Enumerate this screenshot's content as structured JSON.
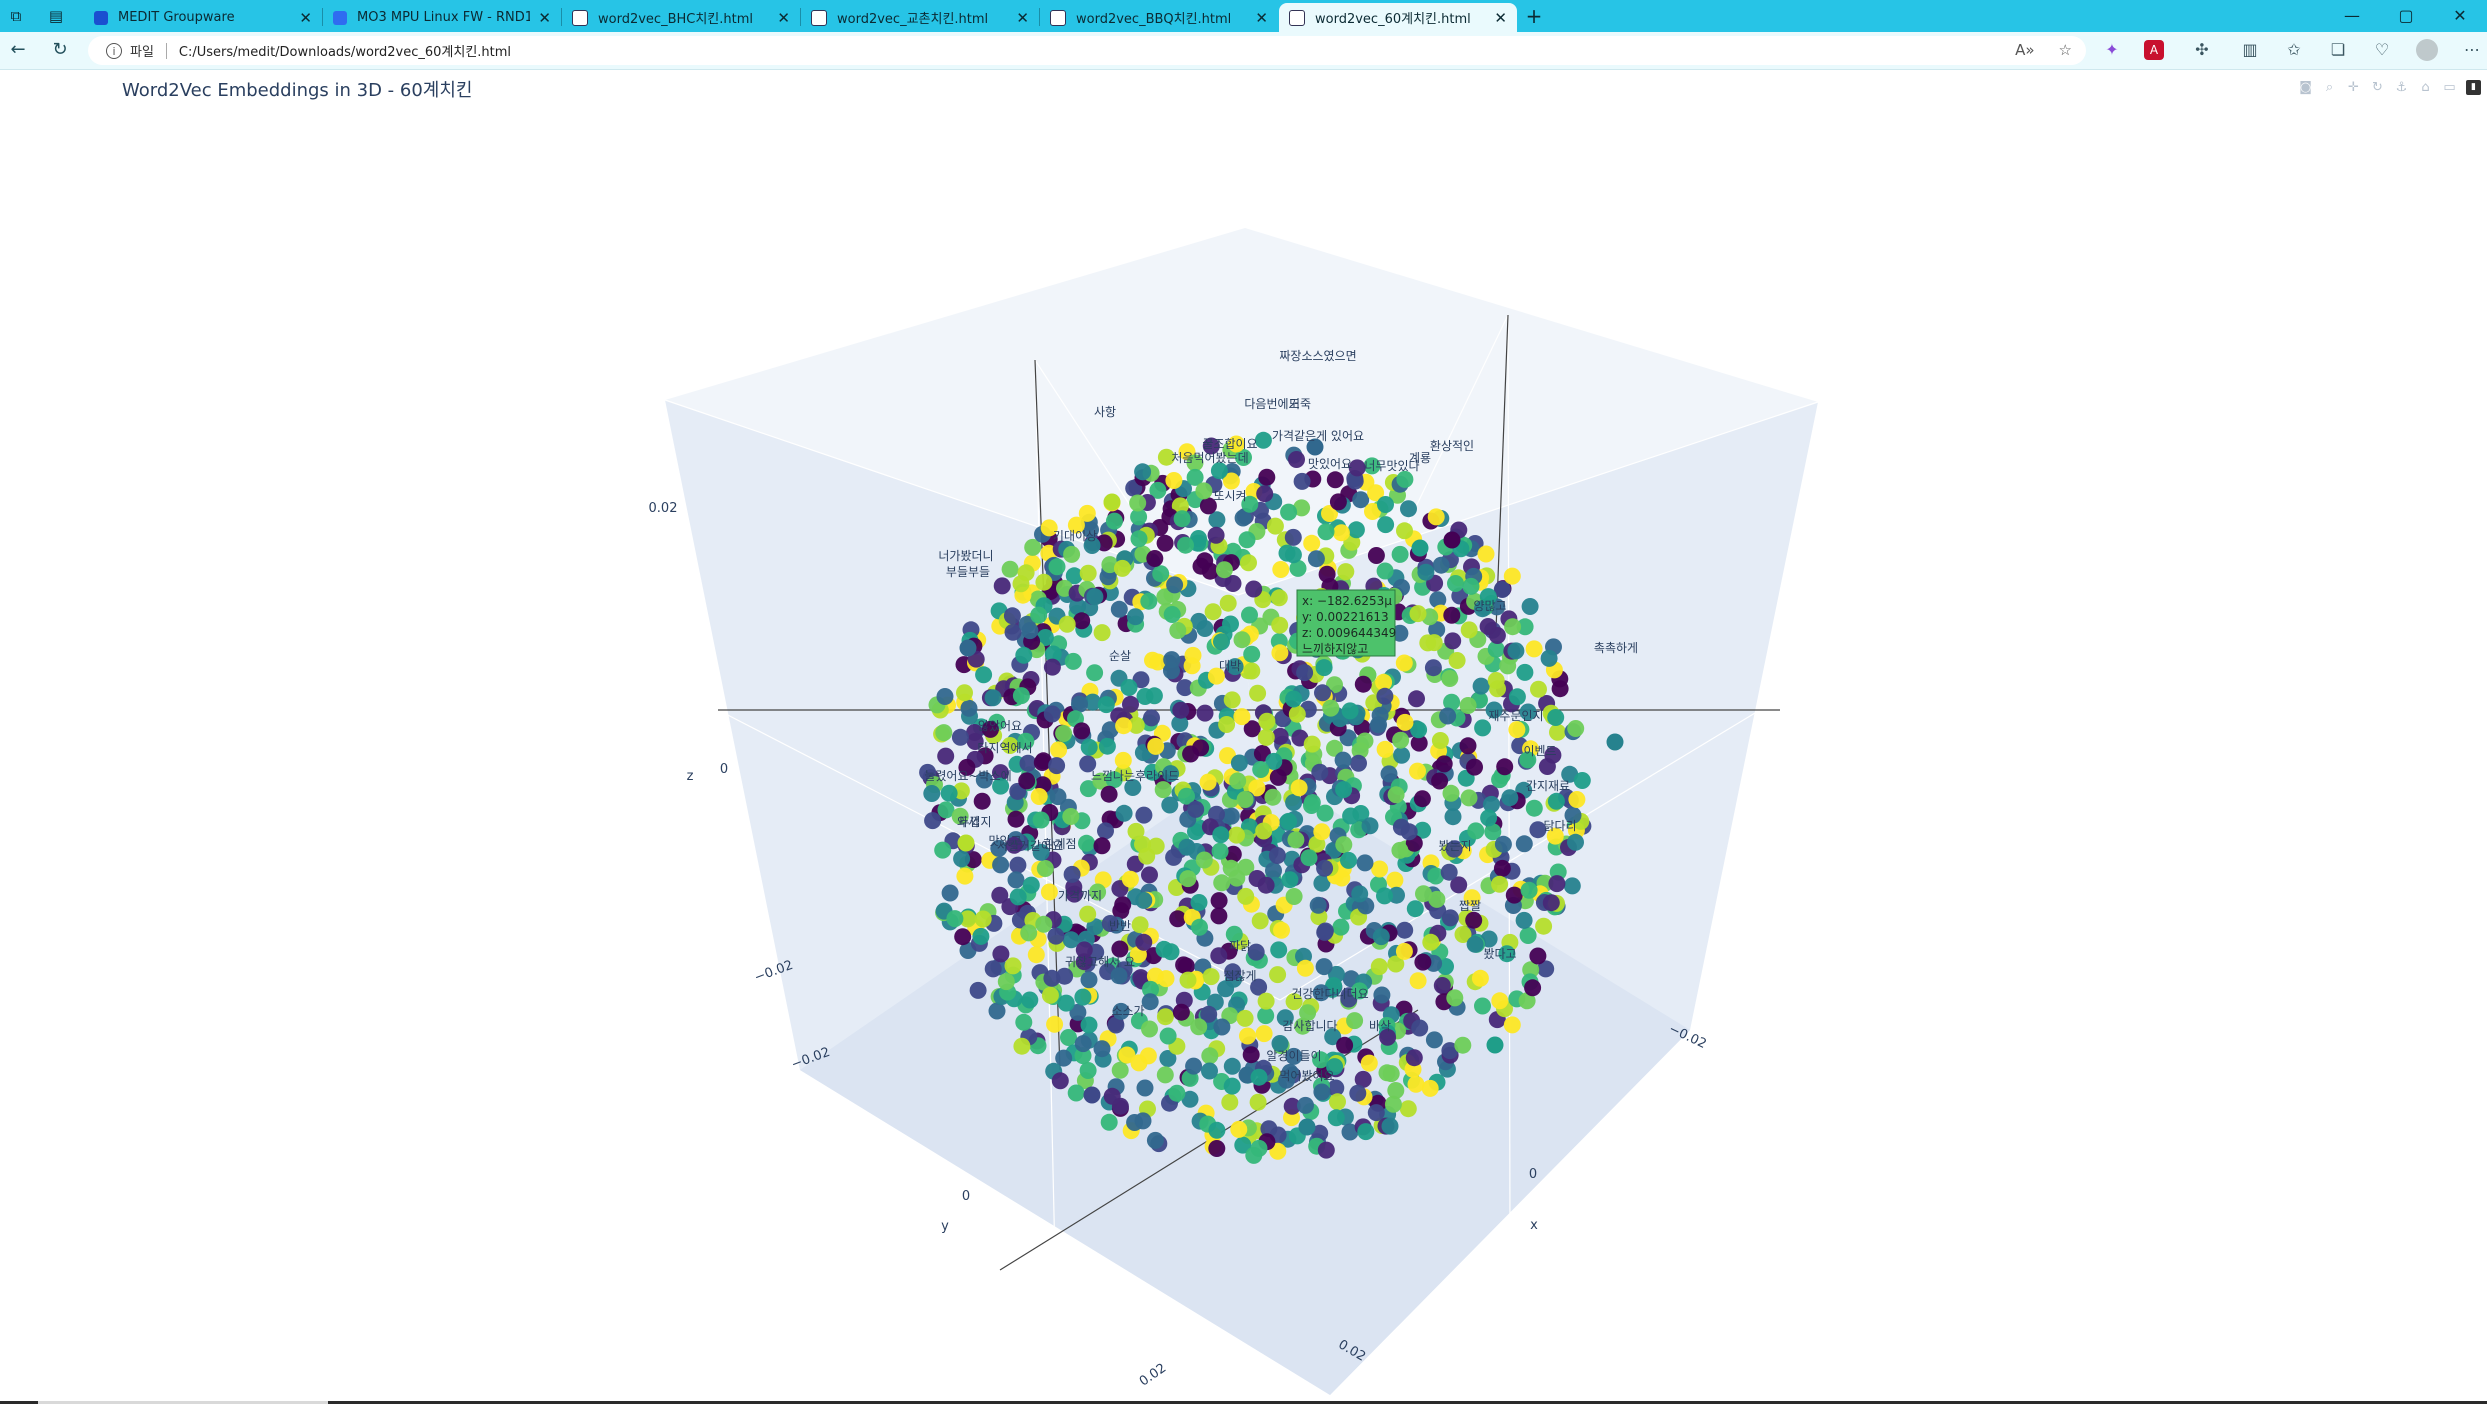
{
  "browser": {
    "tabs": [
      {
        "title": "MEDIT Groupware",
        "active": false,
        "favicon_color": "#1a4fd0"
      },
      {
        "title": "MO3 MPU Linux FW - RND1 Res",
        "active": false,
        "favicon_color": "#2f6cf0"
      },
      {
        "title": "word2vec_BHC치킨.html",
        "active": false,
        "favicon_color": "#ffffff"
      },
      {
        "title": "word2vec_교촌치킨.html",
        "active": false,
        "favicon_color": "#ffffff"
      },
      {
        "title": "word2vec_BBQ치킨.html",
        "active": false,
        "favicon_color": "#ffffff"
      },
      {
        "title": "word2vec_60계치킨.html",
        "active": true,
        "favicon_color": "#ffffff"
      }
    ],
    "address": {
      "protocol_label": "파일",
      "url": "C:/Users/medit/Downloads/word2vec_60계치킨.html"
    },
    "accent": "#27c4e6"
  },
  "plot": {
    "title": "Word2Vec Embeddings in 3D - 60계치킨",
    "axes": {
      "x": {
        "title": "x",
        "ticks": [
          "−0.02",
          "0",
          "0.02"
        ]
      },
      "y": {
        "title": "y",
        "ticks": [
          "−0.02",
          "0",
          "0.02"
        ]
      },
      "z": {
        "title": "z",
        "ticks": [
          "−0.02",
          "0",
          "0.02"
        ]
      }
    },
    "hover": {
      "x": "x: −182.6253μ",
      "y": "y: 0.00221613",
      "z": "z: 0.009644349",
      "word": "느끼하지않고"
    },
    "labels": [
      "짜장소스였으면",
      "사항",
      "다음번에도",
      "거죽",
      "꿀조합이요",
      "가격같은게 있어요",
      "처음먹어봤는데",
      "맛있어요",
      "환상적인",
      "계룡",
      "너무맛있다",
      "기대이상",
      "너가봤더니",
      "부들부들",
      "촉촉하게",
      "않았어요",
      "타지역에서",
      "눌렸어요~박스에",
      "느낌나는후라이드",
      "두껍지",
      "시킬거같아요",
      "와서",
      "맛있고",
      "한계점",
      "가격까지",
      "귀찮고해서 요",
      "소스가",
      "봤다고",
      "건강한다니더요",
      "먹어봤어요",
      "알경이들이",
      "감사합니다",
      "이벤트",
      "재주문인지",
      "간지재료",
      "닭다리",
      "짭짤",
      "봤는지",
      "바삭",
      "점잖게",
      "대박",
      "양많고",
      "또시켜",
      "순살",
      "파닭",
      "반반"
    ],
    "label_count_visible": 46
  },
  "toolbar_icons": [
    "camera-icon",
    "zoom-icon",
    "pan-icon",
    "orbit-icon",
    "turntable-icon",
    "home-icon",
    "hover-icon",
    "plotly-logo-icon"
  ]
}
